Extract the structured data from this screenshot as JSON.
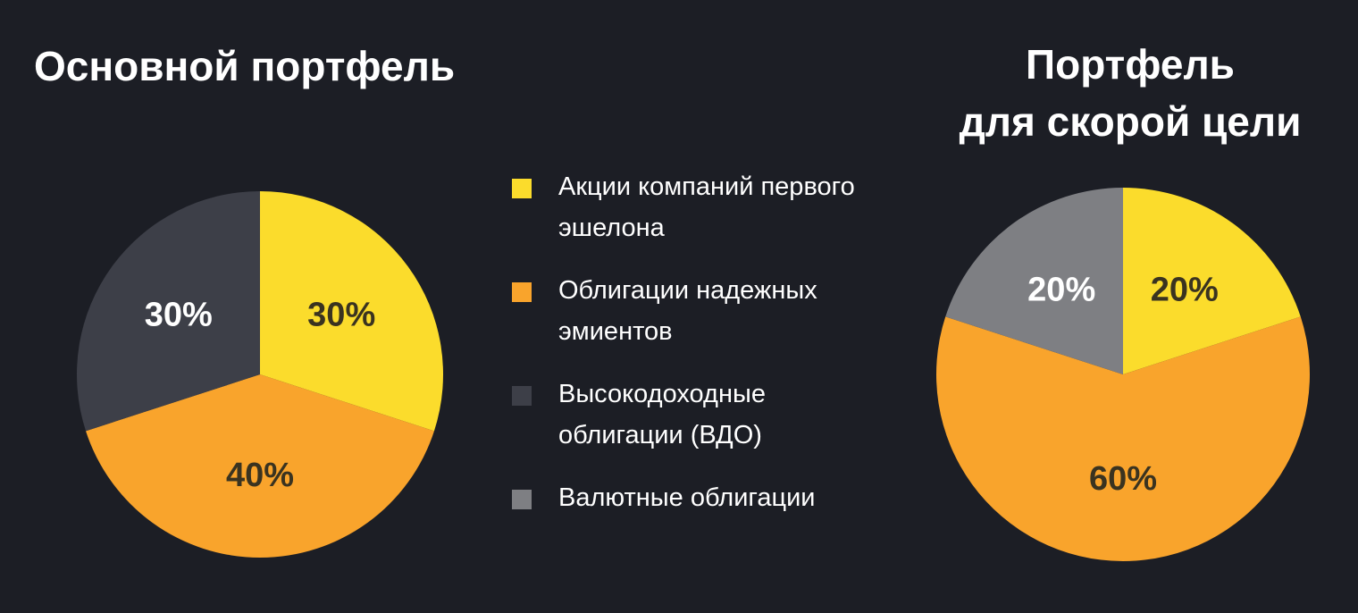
{
  "colors": {
    "background": "#1c1e25",
    "yellow": "#fbdc2c",
    "orange": "#f9a42c",
    "dark": "#3d3f48",
    "gray": "#7e7f83",
    "text_dark": "#3a3320",
    "text_white": "#ffffff"
  },
  "chart_data": [
    {
      "type": "pie",
      "title": "Основной портфель",
      "slices": [
        {
          "label": "Акции компаний первого эшелона",
          "value": 30,
          "display": "30%",
          "color": "#fbdc2c",
          "label_color": "#3a3320"
        },
        {
          "label": "Облигации надежных эмиентов",
          "value": 40,
          "display": "40%",
          "color": "#f9a42c",
          "label_color": "#3a3320"
        },
        {
          "label": "Высокодоходные облигации (ВДО)",
          "value": 30,
          "display": "30%",
          "color": "#3d3f48",
          "label_color": "#ffffff"
        }
      ]
    },
    {
      "type": "pie",
      "title": "Портфель для скорой цели",
      "title_lines": [
        "Портфель",
        "для скорой цели"
      ],
      "slices": [
        {
          "label": "Акции компаний первого эшелона",
          "value": 20,
          "display": "20%",
          "color": "#fbdc2c",
          "label_color": "#3a3320"
        },
        {
          "label": "Облигации надежных эмиентов",
          "value": 60,
          "display": "60%",
          "color": "#f9a42c",
          "label_color": "#3a3320"
        },
        {
          "label": "Валютные облигации",
          "value": 20,
          "display": "20%",
          "color": "#7e7f83",
          "label_color": "#ffffff"
        }
      ]
    }
  ],
  "legend": [
    {
      "label_lines": [
        "Акции компаний первого",
        "эшелона"
      ],
      "color": "#fbdc2c"
    },
    {
      "label_lines": [
        "Облигации надежных",
        "эмиентов"
      ],
      "color": "#f9a42c"
    },
    {
      "label_lines": [
        "Высокодоходные",
        "облигации (ВДО)"
      ],
      "color": "#3d3f48"
    },
    {
      "label_lines": [
        "Валютные облигации"
      ],
      "color": "#7e7f83"
    }
  ]
}
